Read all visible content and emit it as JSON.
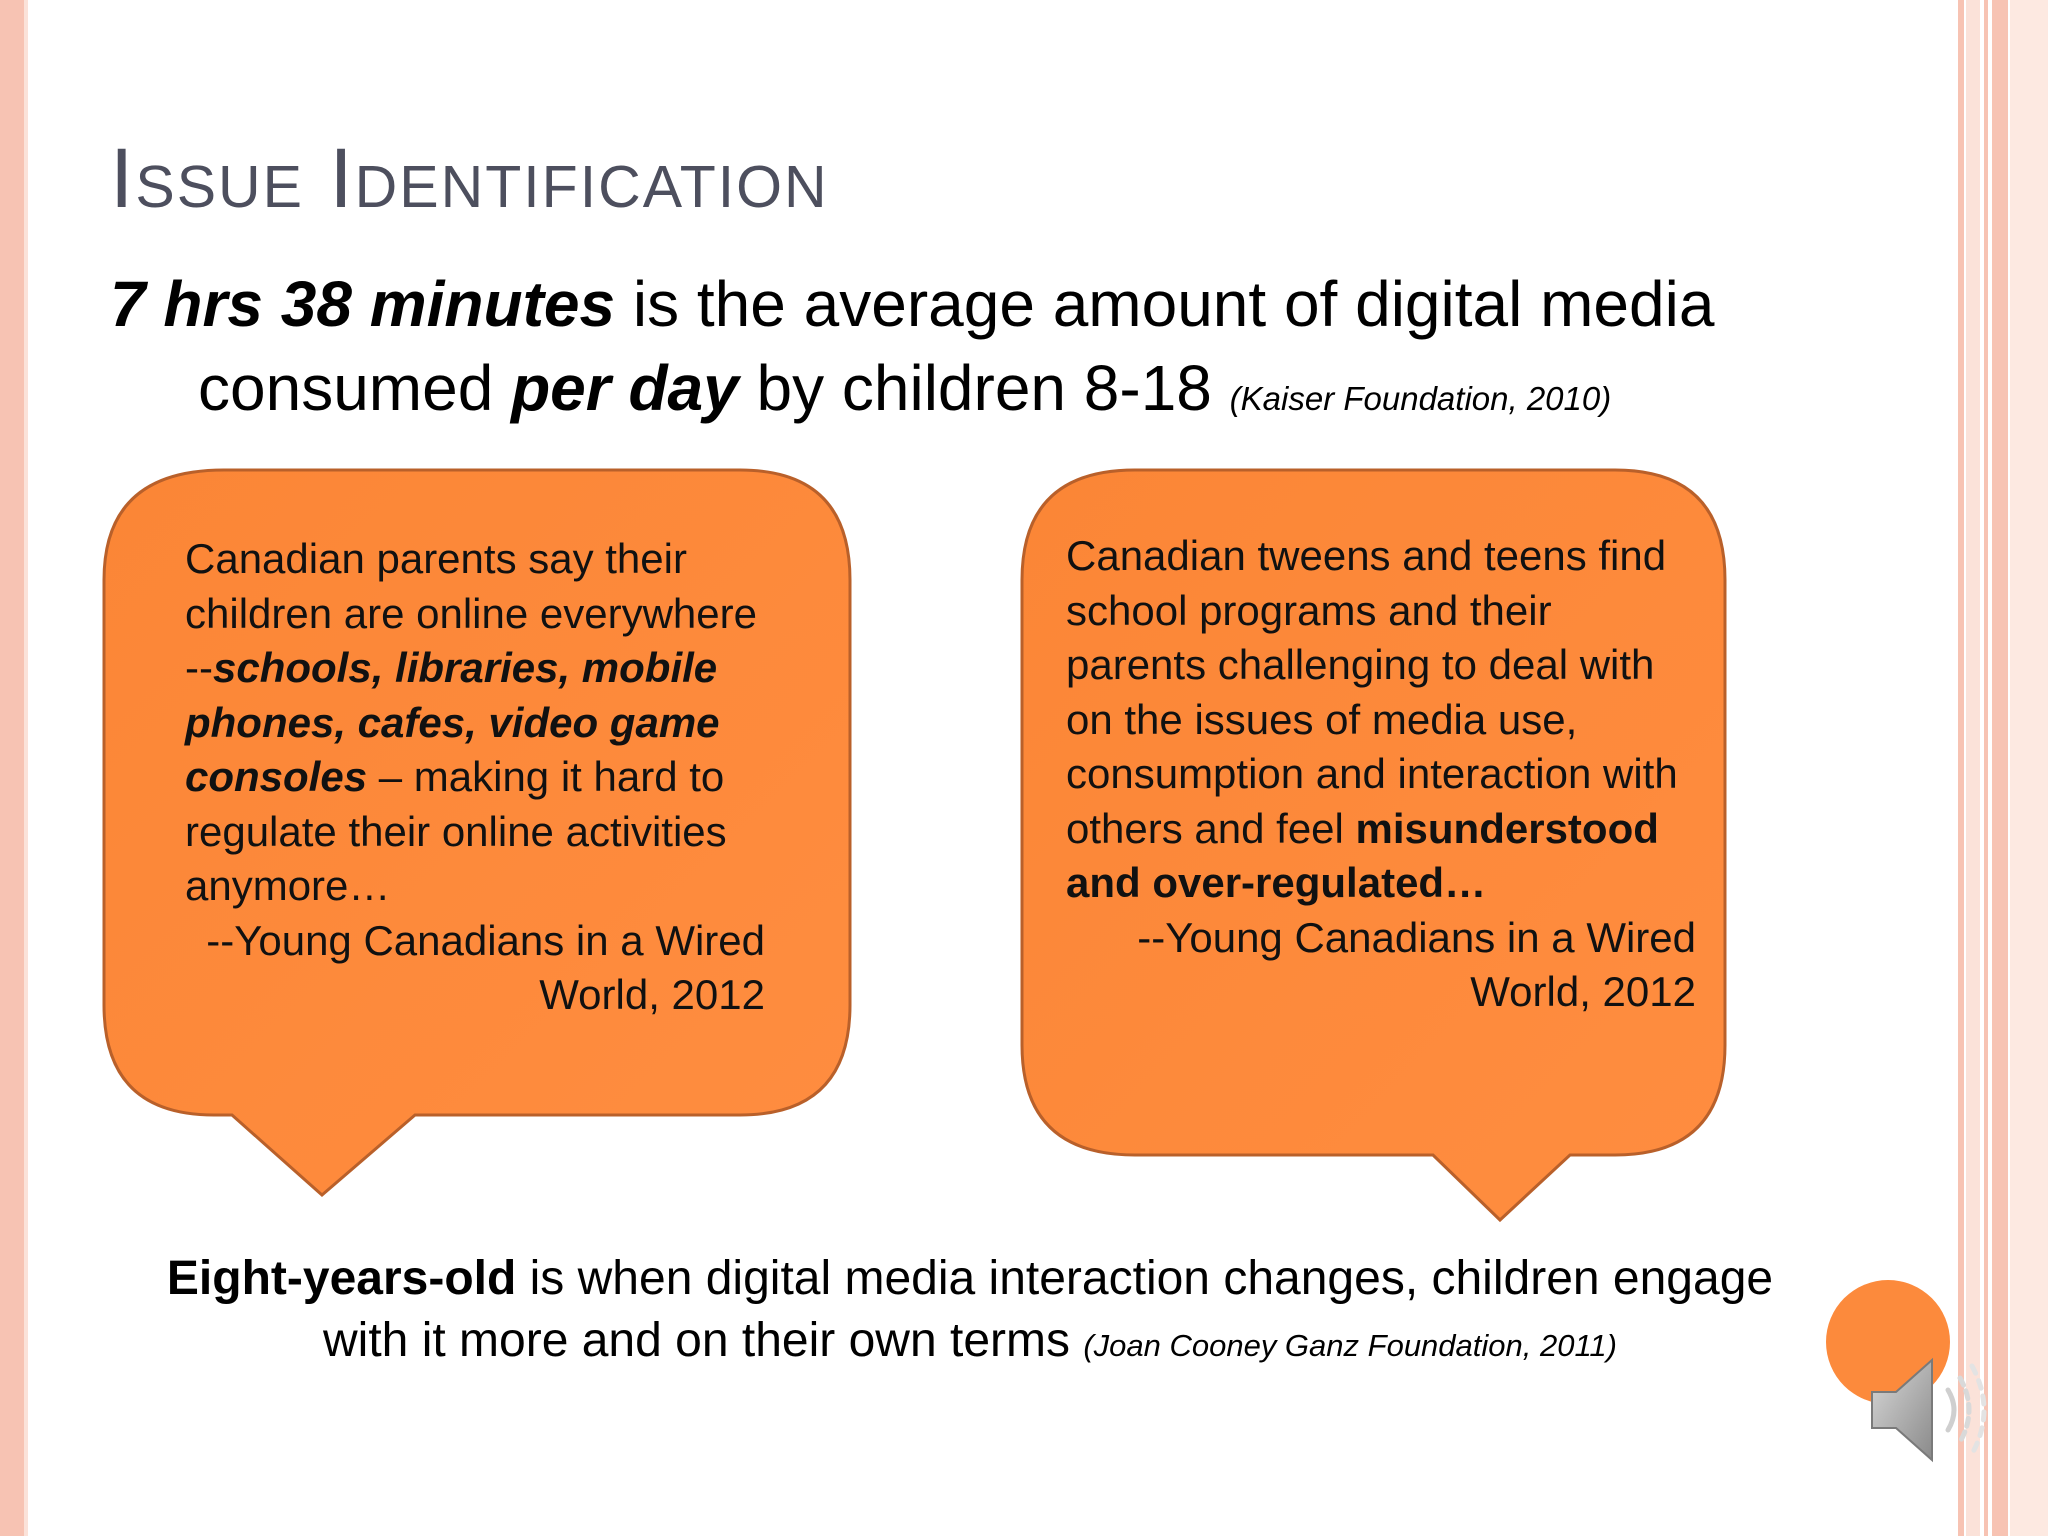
{
  "slide": {
    "title": "Issue Identification",
    "headline": {
      "stat": "7 hrs 38 minutes",
      "text_a": " is the average amount of digital media",
      "text_b": "consumed ",
      "per_day": "per day",
      "text_c": " by children 8-18 ",
      "citation": "(Kaiser Foundation, 2010)"
    },
    "bubble_left": {
      "text_a": "Canadian parents say their children are online everywhere --",
      "emphasis": "schools, libraries, mobile phones, cafes, video game consoles",
      "text_b": " – making it hard to regulate their online activities anymore…",
      "attribution": "--Young Canadians in a Wired World, 2012"
    },
    "bubble_right": {
      "text_a": "Canadian tweens and teens find school programs and their parents challenging to deal with on the issues of media use, consumption and interaction with others and feel ",
      "emphasis": "misunderstood and over-regulated…",
      "attribution": "--Young Canadians in a Wired World, 2012"
    },
    "bottom": {
      "bold": "Eight-years-old",
      "text": " is when digital media interaction changes, children engage with it more and on their own terms ",
      "citation": "(Joan Cooney Ganz Foundation, 2011)"
    }
  },
  "colors": {
    "bubble_fill": "#fc8a3c",
    "bubble_stroke": "#b9602a",
    "title": "#4d4f5e",
    "stripe": "#f7c3b3"
  },
  "icons": {
    "audio": "speaker-icon"
  }
}
